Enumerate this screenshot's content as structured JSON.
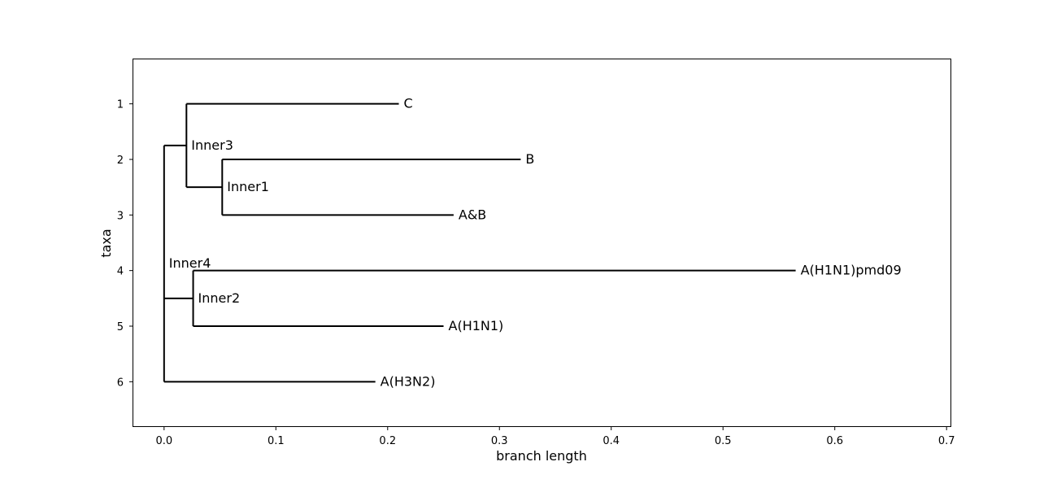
{
  "chart_data": {
    "type": "tree",
    "xlabel": "branch length",
    "ylabel": "taxa",
    "xlim": [
      -0.0275,
      0.7035
    ],
    "ylim": [
      6.8,
      0.2
    ],
    "xticks": [
      0.0,
      0.1,
      0.2,
      0.3,
      0.4,
      0.5,
      0.6,
      0.7
    ],
    "xtick_labels": [
      "0.0",
      "0.1",
      "0.2",
      "0.3",
      "0.4",
      "0.5",
      "0.6",
      "0.7"
    ],
    "yticks": [
      1,
      2,
      3,
      4,
      5,
      6
    ],
    "ytick_labels": [
      "1",
      "2",
      "3",
      "4",
      "5",
      "6"
    ],
    "line_color": "#000000",
    "nodes": [
      {
        "id": "root",
        "label": "",
        "x": 0.0,
        "y": 4.5,
        "parent": null
      },
      {
        "id": "inner3",
        "label": "Inner3",
        "x": 0.02,
        "y": 1.75,
        "parent": "root"
      },
      {
        "id": "c",
        "label": "C",
        "x": 0.21,
        "y": 1,
        "parent": "inner3"
      },
      {
        "id": "inner1",
        "label": "Inner1",
        "x": 0.052,
        "y": 2.5,
        "parent": "inner3"
      },
      {
        "id": "b",
        "label": "B",
        "x": 0.319,
        "y": 2,
        "parent": "inner1"
      },
      {
        "id": "ab",
        "label": "A&B",
        "x": 0.259,
        "y": 3,
        "parent": "inner1"
      },
      {
        "id": "inner4",
        "label": "Inner4",
        "x": 0.0,
        "y": 4.5,
        "parent": null,
        "label_only": true
      },
      {
        "id": "inner2",
        "label": "Inner2",
        "x": 0.026,
        "y": 4.5,
        "parent": "root"
      },
      {
        "id": "h1n1pdm",
        "label": "A(H1N1)pmd09",
        "x": 0.565,
        "y": 4,
        "parent": "inner2"
      },
      {
        "id": "h1n1",
        "label": "A(H1N1)",
        "x": 0.25,
        "y": 5,
        "parent": "inner2"
      },
      {
        "id": "h3n2",
        "label": "A(H3N2)",
        "x": 0.189,
        "y": 6,
        "parent": "root"
      }
    ]
  }
}
